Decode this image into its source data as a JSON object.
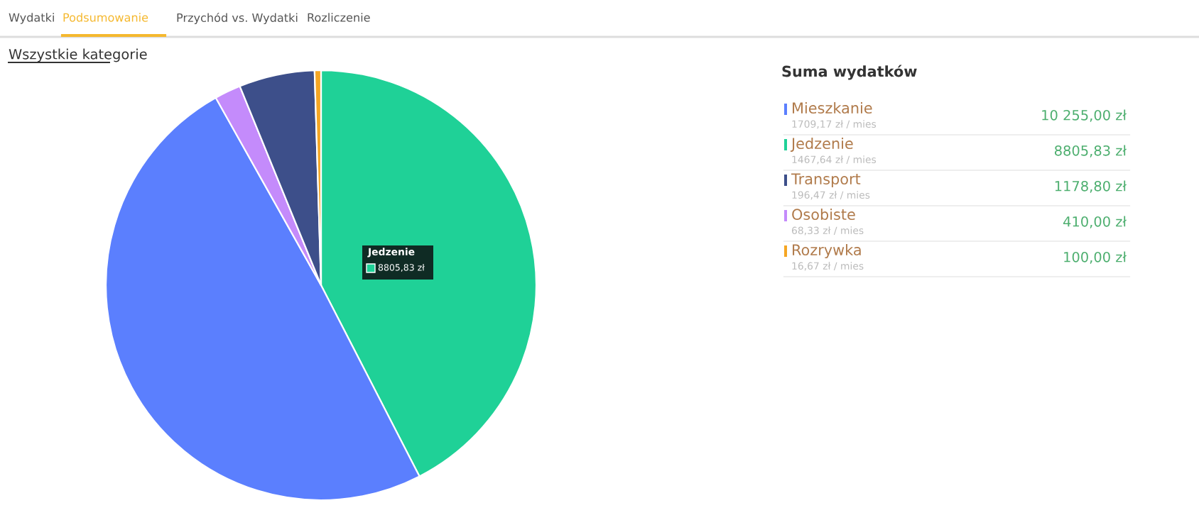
{
  "chart_data": {
    "type": "pie",
    "title": "Suma wydatków",
    "categories": [
      "Jedzenie",
      "Mieszkanie",
      "Osobiste",
      "Transport",
      "Rozrywka"
    ],
    "values": [
      8805.83,
      10255.0,
      410.0,
      1178.8,
      100.0
    ],
    "value_labels": [
      "8805,83 zł",
      "10 255,00 zł",
      "410,00 zł",
      "1178,80 zł",
      "100,00 zł"
    ],
    "colors": [
      "#1fd197",
      "#5b7ffe",
      "#c48bfb",
      "#3d4f8a",
      "#f5a623"
    ],
    "legend": "right",
    "annotations": [
      "Wydatki",
      "Podsumowanie",
      "Przychód vs. Wydatki",
      "Rozliczenie",
      "Wszystkie kategorie",
      "Jedzenie\n8805,83 zł",
      "1467,64 zł / mies",
      "1709,17 zł / mies",
      "68,33 zł / mies",
      "196,47 zł / mies",
      "16,67 zł / mies"
    ]
  }
}
